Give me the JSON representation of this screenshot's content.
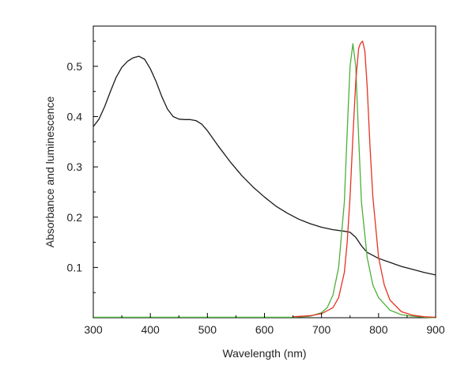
{
  "chart_data": {
    "type": "line",
    "title": "",
    "xlabel": "Wavelength (nm)",
    "ylabel": "Absorbance and luminescence",
    "xlim": [
      300,
      900
    ],
    "ylim": [
      0,
      0.58
    ],
    "xticks": [
      300,
      400,
      500,
      600,
      700,
      800,
      900
    ],
    "xtick_labels": [
      "300",
      "400",
      "500",
      "600",
      "700",
      "800",
      "900"
    ],
    "yticks": [
      0.1,
      0.2,
      0.3,
      0.4,
      0.5
    ],
    "ytick_labels": [
      "0.1",
      "0.2",
      "0.3",
      "0.4",
      "0.5"
    ],
    "grid": false,
    "legend": "none",
    "series": [
      {
        "color": "#1a1a1a",
        "x": [
          300,
          310,
          320,
          330,
          340,
          350,
          360,
          370,
          380,
          390,
          400,
          410,
          420,
          430,
          440,
          450,
          460,
          470,
          480,
          490,
          500,
          520,
          540,
          560,
          580,
          600,
          620,
          640,
          660,
          680,
          700,
          720,
          740,
          750,
          760,
          770,
          780,
          800,
          820,
          840,
          860,
          880,
          900
        ],
        "y": [
          0.38,
          0.395,
          0.42,
          0.45,
          0.478,
          0.498,
          0.51,
          0.517,
          0.52,
          0.514,
          0.495,
          0.47,
          0.44,
          0.415,
          0.4,
          0.395,
          0.394,
          0.394,
          0.392,
          0.385,
          0.372,
          0.34,
          0.31,
          0.283,
          0.26,
          0.24,
          0.222,
          0.208,
          0.196,
          0.187,
          0.18,
          0.175,
          0.172,
          0.17,
          0.16,
          0.143,
          0.13,
          0.118,
          0.11,
          0.102,
          0.096,
          0.09,
          0.085
        ]
      },
      {
        "color": "#4caf3a",
        "x": [
          300,
          500,
          650,
          680,
          700,
          710,
          720,
          730,
          740,
          745,
          750,
          755,
          760,
          765,
          770,
          780,
          790,
          800,
          820,
          840,
          860,
          880,
          900
        ],
        "y": [
          0.001,
          0.001,
          0.001,
          0.003,
          0.01,
          0.02,
          0.045,
          0.1,
          0.23,
          0.37,
          0.5,
          0.545,
          0.5,
          0.36,
          0.23,
          0.12,
          0.065,
          0.04,
          0.015,
          0.006,
          0.003,
          0.001,
          0.0
        ]
      },
      {
        "color": "#e53222",
        "x": [
          650,
          680,
          700,
          720,
          730,
          740,
          745,
          750,
          755,
          760,
          765,
          768,
          772,
          776,
          780,
          785,
          790,
          800,
          810,
          820,
          840,
          860,
          880,
          900
        ],
        "y": [
          0.002,
          0.004,
          0.008,
          0.02,
          0.04,
          0.09,
          0.15,
          0.24,
          0.36,
          0.47,
          0.535,
          0.545,
          0.55,
          0.53,
          0.46,
          0.34,
          0.24,
          0.12,
          0.065,
          0.035,
          0.012,
          0.005,
          0.002,
          0.001
        ]
      }
    ]
  }
}
